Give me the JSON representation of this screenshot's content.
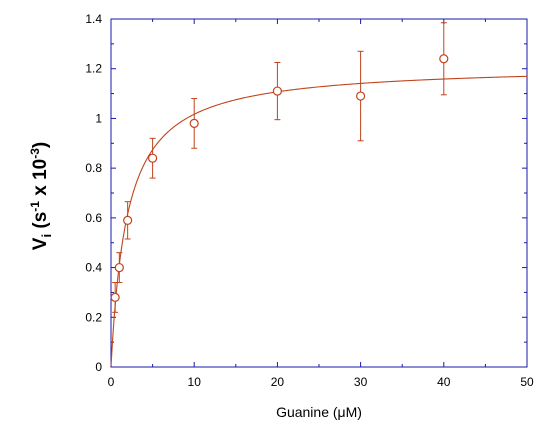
{
  "chart_data": {
    "type": "scatter",
    "xlabel": "Guanine (μM)",
    "ylabel": {
      "base": "V",
      "sub": "i",
      "paren_open": " (s",
      "sup1": "-1",
      "mid": " x 10",
      "sup2": "-3",
      "paren_close": ")"
    },
    "xlim": [
      0,
      50
    ],
    "ylim": [
      0,
      1.4
    ],
    "x_ticks": [
      0,
      10,
      20,
      30,
      40,
      50
    ],
    "y_ticks": [
      0,
      0.2,
      0.4,
      0.6,
      0.8,
      1,
      1.2,
      1.4
    ],
    "x_tick_labels": [
      "0",
      "10",
      "20",
      "30",
      "40",
      "50"
    ],
    "y_tick_labels": [
      "0",
      "0.2",
      "0.4",
      "0.6",
      "0.8",
      "1",
      "1.2",
      "1.4"
    ],
    "grid": false,
    "series": [
      {
        "points": [
          {
            "x": 0.5,
            "y": 0.28,
            "err": 0.06
          },
          {
            "x": 1,
            "y": 0.4,
            "err": 0.06
          },
          {
            "x": 2,
            "y": 0.59,
            "err": 0.075
          },
          {
            "x": 5,
            "y": 0.84,
            "err": 0.08
          },
          {
            "x": 10,
            "y": 0.98,
            "err": 0.1
          },
          {
            "x": 20,
            "y": 1.11,
            "err": 0.115
          },
          {
            "x": 30,
            "y": 1.09,
            "err": 0.18
          },
          {
            "x": 40,
            "y": 1.24,
            "err": 0.145
          }
        ]
      }
    ],
    "fit": {
      "model": "michaelis-menten",
      "vmax": 1.215,
      "km": 1.95
    },
    "colors": {
      "data": "#c0441c",
      "axis": "#1a1aa6",
      "text": "#000000"
    }
  }
}
